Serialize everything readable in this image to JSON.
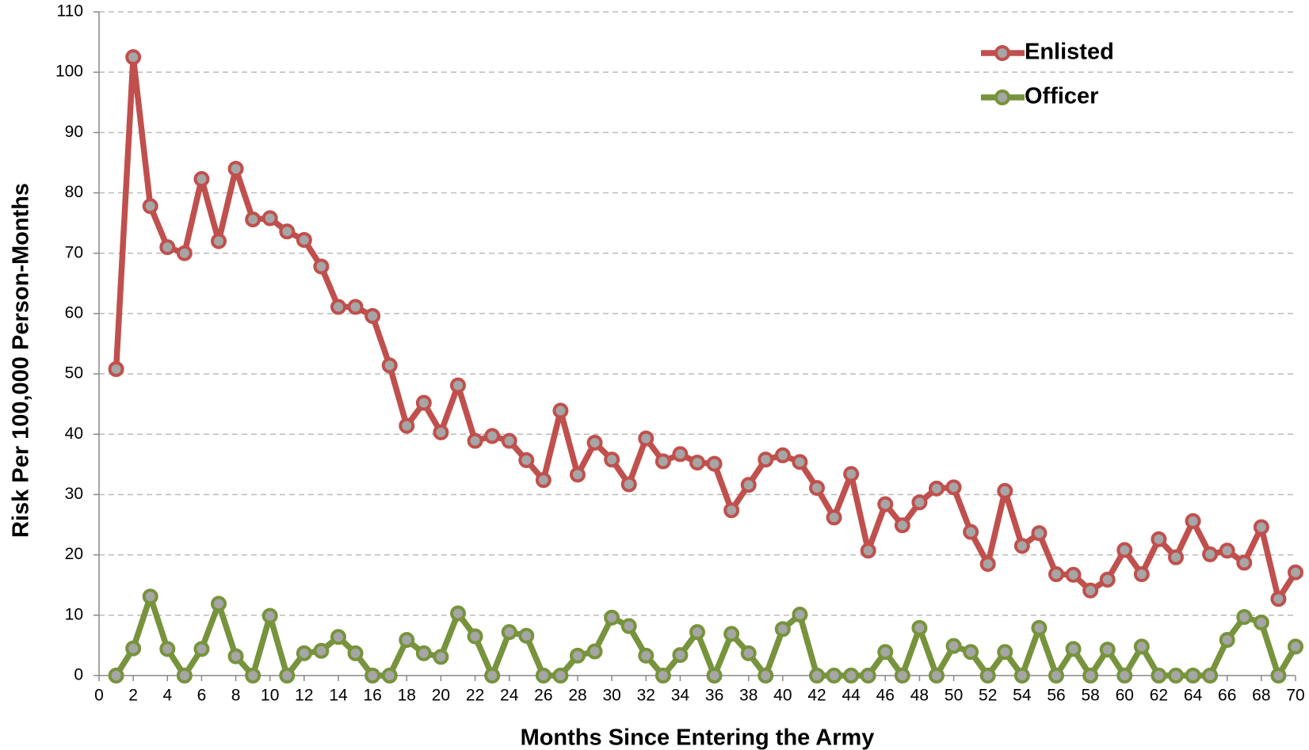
{
  "chart_data": {
    "type": "line",
    "xlabel": "Months Since Entering the Army",
    "ylabel": "Risk Per 100,000 Person-Months",
    "x": [
      1,
      2,
      3,
      4,
      5,
      6,
      7,
      8,
      9,
      10,
      11,
      12,
      13,
      14,
      15,
      16,
      17,
      18,
      19,
      20,
      21,
      22,
      23,
      24,
      25,
      26,
      27,
      28,
      29,
      30,
      31,
      32,
      33,
      34,
      35,
      36,
      37,
      38,
      39,
      40,
      41,
      42,
      43,
      44,
      45,
      46,
      47,
      48,
      49,
      50,
      51,
      52,
      53,
      54,
      55,
      56,
      57,
      58,
      59,
      60,
      61,
      62,
      63,
      64,
      65,
      66,
      67,
      68,
      69,
      70
    ],
    "series": [
      {
        "name": "Enlisted",
        "color": "#c0504d",
        "values": [
          50.8,
          102.5,
          77.8,
          71,
          70,
          82.3,
          72,
          84,
          75.6,
          75.8,
          73.6,
          72.2,
          67.8,
          61.1,
          61.1,
          59.6,
          51.4,
          41.4,
          45.2,
          40.3,
          48.1,
          38.9,
          39.7,
          38.9,
          35.7,
          32.4,
          43.9,
          33.3,
          38.6,
          35.8,
          31.7,
          39.3,
          35.5,
          36.7,
          35.3,
          35.1,
          27.4,
          31.6,
          35.8,
          36.5,
          35.4,
          31.1,
          26.2,
          33.4,
          20.7,
          28.4,
          24.9,
          28.7,
          31,
          31.2,
          23.8,
          18.5,
          30.6,
          21.5,
          23.6,
          16.8,
          16.7,
          14.1,
          15.9,
          20.8,
          16.8,
          22.6,
          19.6,
          25.6,
          20.1,
          20.7,
          18.7,
          24.6,
          12.7,
          17.1
        ]
      },
      {
        "name": "Officer",
        "color": "#77933c",
        "values": [
          0,
          4.5,
          13.1,
          4.4,
          0,
          4.4,
          11.9,
          3.2,
          0,
          9.9,
          0,
          3.7,
          4.1,
          6.4,
          3.7,
          0,
          0,
          5.9,
          3.7,
          3.1,
          10.3,
          6.5,
          0,
          7.2,
          6.6,
          0,
          0,
          3.3,
          4,
          9.6,
          8.2,
          3.3,
          0,
          3.4,
          7.2,
          0,
          6.9,
          3.7,
          0,
          7.7,
          10.1,
          0,
          0,
          0,
          0,
          3.9,
          0,
          7.9,
          0,
          4.9,
          3.9,
          0,
          3.9,
          0,
          7.9,
          0,
          4.4,
          0,
          4.3,
          0,
          4.8,
          0,
          0,
          0,
          0,
          5.9,
          9.7,
          8.8,
          0,
          4.8
        ]
      }
    ],
    "xlim": [
      0,
      70
    ],
    "xticks": [
      0,
      2,
      4,
      6,
      8,
      10,
      12,
      14,
      16,
      18,
      20,
      22,
      24,
      26,
      28,
      30,
      32,
      34,
      36,
      38,
      40,
      42,
      44,
      46,
      48,
      50,
      52,
      54,
      56,
      58,
      60,
      62,
      64,
      66,
      68,
      70
    ],
    "ylim": [
      0,
      110
    ],
    "yticks": [
      0,
      10,
      20,
      30,
      40,
      50,
      60,
      70,
      80,
      90,
      100,
      110
    ],
    "grid": true,
    "legend": "upper right",
    "marker_fill": "#a6a6a6"
  }
}
